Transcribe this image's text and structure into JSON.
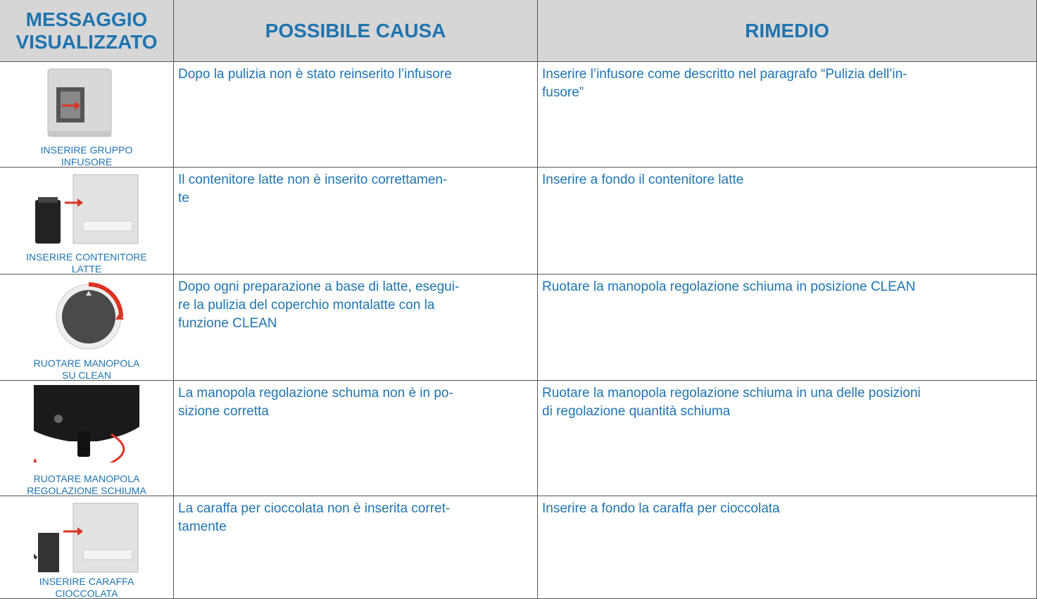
{
  "header": {
    "columns": [
      [
        "MESSAGGIO",
        "VISUALIZZATO"
      ],
      [
        "POSSIBILE CAUSA"
      ],
      [
        "RIMEDIO"
      ]
    ]
  },
  "table": {
    "rows": [
      {
        "message": [
          "INSERIRE GRUPPO",
          "INFUSORE"
        ],
        "cause": [
          "Dopo la pulizia non è stato reinserito l’infusore"
        ],
        "remedy": [
          "Inserire l’infusore come descritto nel paragrafo “Pulizia dell’in-",
          "fusore”"
        ]
      },
      {
        "message": [
          "INSERIRE CONTENITORE",
          "LATTE"
        ],
        "cause": [
          "Il contenitore latte non è inserito correttamen-",
          "te"
        ],
        "remedy": [
          "Inserire a fondo il contenitore latte"
        ]
      },
      {
        "message": [
          "RUOTARE MANOPOLA",
          "SU CLEAN"
        ],
        "cause": [
          "Dopo ogni preparazione a base di latte, esegui-",
          "re la pulizia del coperchio montalatte con la",
          "funzione CLEAN"
        ],
        "remedy": [
          "Ruotare la manopola regolazione schiuma in posizione CLEAN"
        ]
      },
      {
        "message": [
          "RUOTARE MANOPOLA",
          "REGOLAZIONE SCHIUMA"
        ],
        "cause": [
          "La manopola regolazione schuma non è in po-",
          "sizione corretta"
        ],
        "remedy": [
          "Ruotare la manopola regolazione schiuma in una delle posizioni",
          "di regolazione quantità schiuma"
        ]
      },
      {
        "message": [
          "INSERIRE CARAFFA",
          "CIOCCOLATA"
        ],
        "cause": [
          "La caraffa per cioccolata non è inserita corret-",
          "tamente"
        ],
        "remedy": [
          "Inserire a fondo la caraffa per cioccolata"
        ]
      }
    ]
  }
}
